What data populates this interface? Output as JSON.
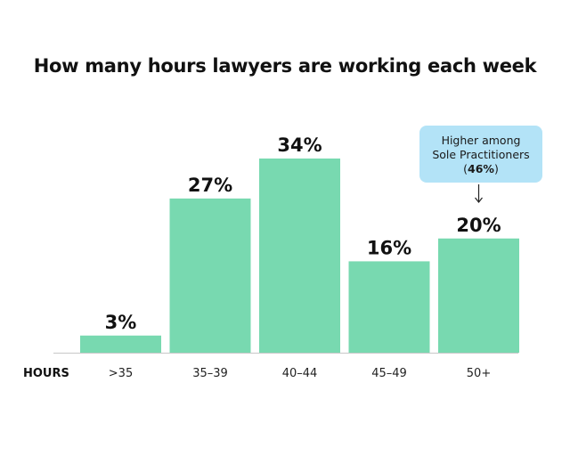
{
  "chart_data": {
    "type": "bar",
    "title": "How many hours lawyers are working each week",
    "xlabel": "HOURS",
    "ylabel": "",
    "categories": [
      ">35",
      "35–39",
      "40–44",
      "45–49",
      "50+"
    ],
    "values": [
      3,
      27,
      34,
      16,
      20
    ],
    "value_labels": [
      "3%",
      "27%",
      "34%",
      "16%",
      "20%"
    ],
    "ylim": [
      0,
      34
    ],
    "grid": false,
    "bar_color": "#78d9b0",
    "annotation": {
      "category": "50+",
      "line1": "Higher among",
      "line2": "Sole Practitioners",
      "open": "(",
      "value": "46%",
      "close": ")",
      "color": "#b3e3f7"
    }
  }
}
